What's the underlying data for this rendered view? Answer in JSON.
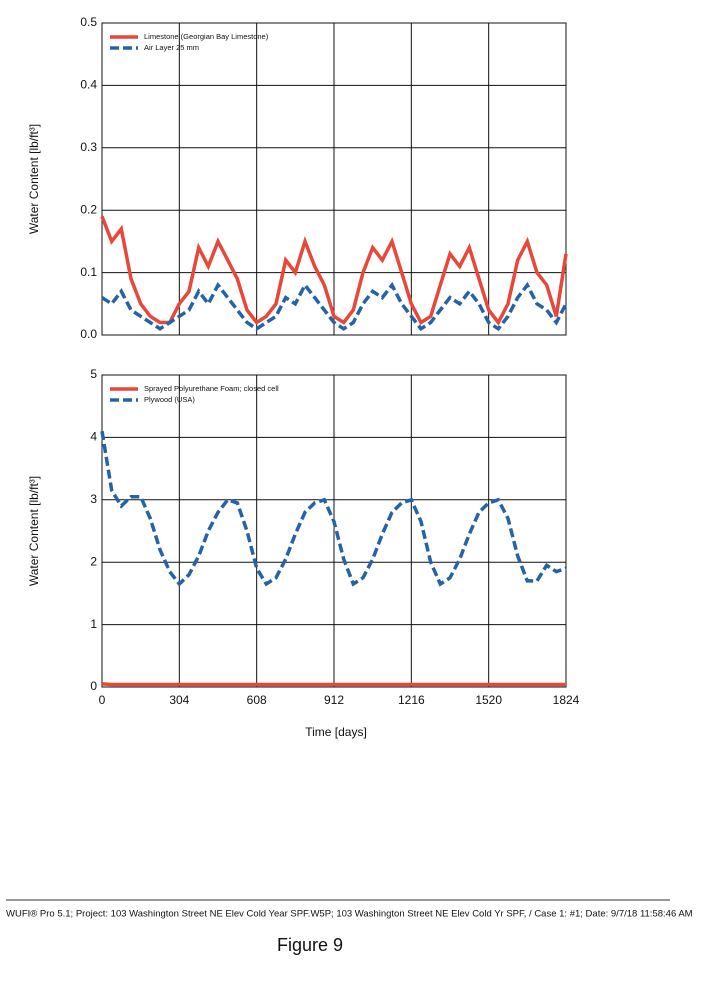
{
  "chart_data": [
    {
      "type": "line",
      "ylabel": "Water Content [lb/ft³]",
      "legend": "upper left",
      "grid": true,
      "xlim": [
        0,
        1824
      ],
      "ylim": [
        0,
        0.5
      ],
      "yticks": [
        {
          "value": 0,
          "label": "0.0"
        },
        0.1,
        0.2,
        0.3,
        0.4,
        0.5
      ],
      "x": [
        0,
        38,
        76,
        114,
        152,
        190,
        228,
        266,
        304,
        342,
        380,
        418,
        456,
        494,
        532,
        570,
        608,
        646,
        684,
        722,
        760,
        798,
        836,
        874,
        912,
        950,
        988,
        1026,
        1064,
        1102,
        1140,
        1178,
        1216,
        1254,
        1292,
        1330,
        1368,
        1406,
        1444,
        1482,
        1520,
        1558,
        1596,
        1634,
        1672,
        1710,
        1748,
        1786,
        1824
      ],
      "series": [
        {
          "name": "Limestone (Georgian Bay Limestone)",
          "color": "#e8483a",
          "dash": false,
          "values": [
            0.19,
            0.15,
            0.17,
            0.09,
            0.05,
            0.03,
            0.02,
            0.02,
            0.05,
            0.07,
            0.14,
            0.11,
            0.15,
            0.12,
            0.09,
            0.04,
            0.02,
            0.03,
            0.05,
            0.12,
            0.1,
            0.15,
            0.11,
            0.08,
            0.03,
            0.02,
            0.04,
            0.1,
            0.14,
            0.12,
            0.15,
            0.1,
            0.05,
            0.02,
            0.03,
            0.08,
            0.13,
            0.11,
            0.14,
            0.09,
            0.04,
            0.02,
            0.05,
            0.12,
            0.15,
            0.1,
            0.08,
            0.03,
            0.13
          ]
        },
        {
          "name": "Air Layer 25 mm",
          "color": "#2563a8",
          "dash": true,
          "values": [
            0.06,
            0.05,
            0.07,
            0.04,
            0.03,
            0.02,
            0.01,
            0.02,
            0.03,
            0.04,
            0.07,
            0.05,
            0.08,
            0.06,
            0.04,
            0.02,
            0.01,
            0.02,
            0.03,
            0.06,
            0.05,
            0.08,
            0.06,
            0.04,
            0.02,
            0.01,
            0.02,
            0.05,
            0.07,
            0.06,
            0.08,
            0.05,
            0.03,
            0.01,
            0.02,
            0.04,
            0.06,
            0.05,
            0.07,
            0.05,
            0.02,
            0.01,
            0.03,
            0.06,
            0.08,
            0.05,
            0.04,
            0.02,
            0.05
          ]
        }
      ]
    },
    {
      "type": "line",
      "ylabel": "Water Content [lb/ft³]",
      "xlabel": "Time [days]",
      "legend": "upper left",
      "grid": true,
      "xlim": [
        0,
        1824
      ],
      "ylim": [
        0,
        5
      ],
      "xticks": [
        0,
        304,
        608,
        912,
        1216,
        1520,
        1824
      ],
      "yticks": [
        0,
        1,
        2,
        3,
        4,
        5
      ],
      "x": [
        0,
        38,
        76,
        114,
        152,
        190,
        228,
        266,
        304,
        342,
        380,
        418,
        456,
        494,
        532,
        570,
        608,
        646,
        684,
        722,
        760,
        798,
        836,
        874,
        912,
        950,
        988,
        1026,
        1064,
        1102,
        1140,
        1178,
        1216,
        1254,
        1292,
        1330,
        1368,
        1406,
        1444,
        1482,
        1520,
        1558,
        1596,
        1634,
        1672,
        1710,
        1748,
        1786,
        1824
      ],
      "series": [
        {
          "name": "Sprayed Polyurethane Foam; closed cell",
          "color": "#e8483a",
          "dash": false,
          "values": [
            0.05,
            0.04,
            0.04,
            0.04,
            0.04,
            0.04,
            0.04,
            0.04,
            0.04,
            0.04,
            0.04,
            0.04,
            0.04,
            0.04,
            0.04,
            0.04,
            0.04,
            0.04,
            0.04,
            0.04,
            0.04,
            0.04,
            0.04,
            0.04,
            0.04,
            0.04,
            0.04,
            0.04,
            0.04,
            0.04,
            0.04,
            0.04,
            0.04,
            0.04,
            0.04,
            0.04,
            0.04,
            0.04,
            0.04,
            0.04,
            0.04,
            0.04,
            0.04,
            0.04,
            0.04,
            0.04,
            0.04,
            0.04,
            0.04
          ]
        },
        {
          "name": "Plywood (USA)",
          "color": "#2563a8",
          "dash": true,
          "values": [
            4.1,
            3.15,
            2.9,
            3.05,
            3.05,
            2.7,
            2.2,
            1.85,
            1.65,
            1.8,
            2.1,
            2.5,
            2.8,
            3.0,
            2.95,
            2.5,
            1.9,
            1.65,
            1.75,
            2.05,
            2.45,
            2.8,
            2.95,
            3.0,
            2.65,
            2.05,
            1.65,
            1.75,
            2.05,
            2.45,
            2.8,
            2.95,
            3.0,
            2.65,
            2.0,
            1.65,
            1.75,
            2.05,
            2.45,
            2.8,
            2.95,
            3.0,
            2.7,
            2.1,
            1.7,
            1.7,
            1.95,
            1.85,
            1.9
          ]
        }
      ]
    }
  ],
  "footer": "WUFI® Pro 5.1; Project: 103 Washington Street NE Elev Cold Year SPF.W5P; 103 Washington Street NE Elev Cold Yr SPF, / Case 1: #1; Date: 9/7/18 11:58:46 AM",
  "caption": "Figure 9"
}
